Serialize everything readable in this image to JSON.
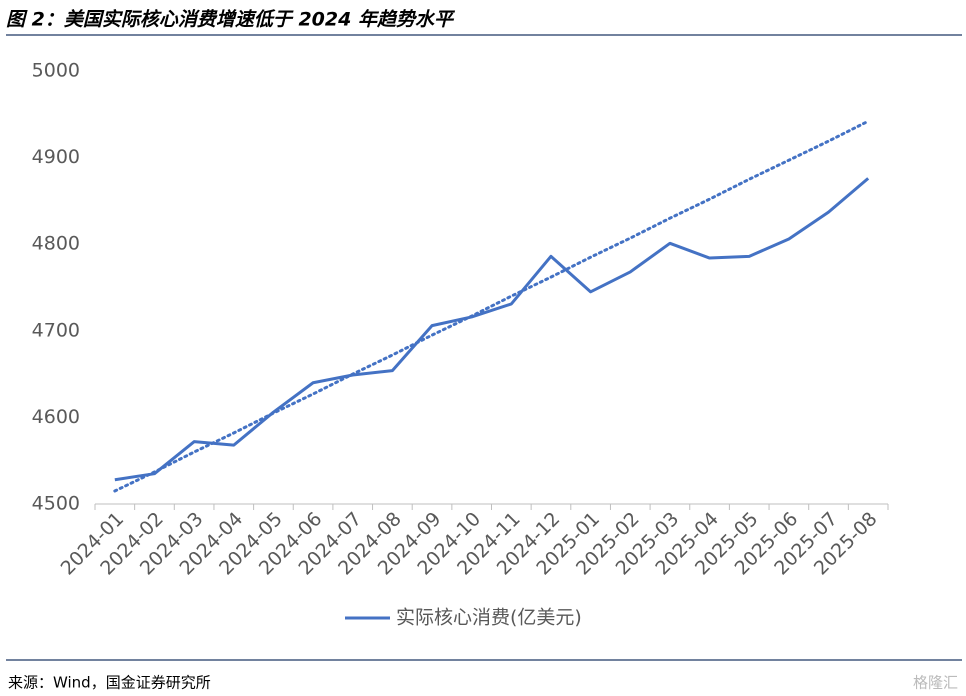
{
  "chart_data": {
    "type": "line",
    "title": "图 2：美国实际核心消费增速低于 2024 年趋势水平",
    "source": "来源：Wind，国金证券研究所",
    "watermark": "格隆汇",
    "categories": [
      "2024-01",
      "2024-02",
      "2024-03",
      "2024-04",
      "2024-05",
      "2024-06",
      "2024-07",
      "2024-08",
      "2024-09",
      "2024-10",
      "2024-11",
      "2024-12",
      "2025-01",
      "2025-02",
      "2025-03",
      "2025-04",
      "2025-05",
      "2025-06",
      "2025-07",
      "2025-08"
    ],
    "series": [
      {
        "name": "实际核心消费(亿美元)",
        "color": "#4472c4",
        "values": [
          4528,
          4535,
          4572,
          4568,
          4606,
          4640,
          4649,
          4654,
          4706,
          4716,
          4731,
          4786,
          4745,
          4768,
          4801,
          4784,
          4786,
          4806,
          4837,
          4876
        ]
      }
    ],
    "trend": {
      "color": "#4472c4",
      "style": "dotted",
      "values": [
        4515,
        4537,
        4560,
        4582,
        4605,
        4627,
        4650,
        4672,
        4695,
        4717,
        4740,
        4762,
        4785,
        4807,
        4830,
        4852,
        4875,
        4897,
        4919,
        4942
      ]
    },
    "ylim": [
      4500,
      5000
    ],
    "yticks": [
      4500,
      4600,
      4700,
      4800,
      4900,
      5000
    ],
    "grid": false,
    "legend": "bottom"
  }
}
